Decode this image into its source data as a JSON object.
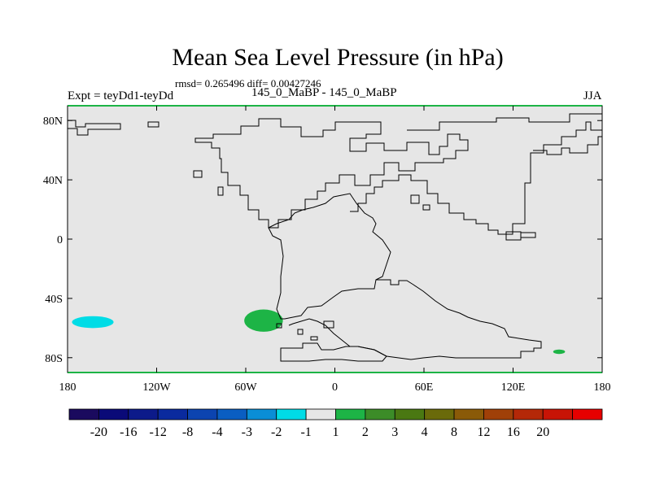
{
  "title": "Mean Sea Level Pressure (in hPa)",
  "stats": "rmsd= 0.265496  diff= 0.00427246",
  "left_label": "Expt = teyDd1-teyDd",
  "center_label": "145_0_MaBP - 145_0_MaBP",
  "right_label": "JJA",
  "map": {
    "background_color": "#e6e6e6",
    "lat_ticks": [
      {
        "lat": 80,
        "label": "80N"
      },
      {
        "lat": 40,
        "label": "40N"
      },
      {
        "lat": 0,
        "label": "0"
      },
      {
        "lat": -40,
        "label": "40S"
      },
      {
        "lat": -80,
        "label": "80S"
      }
    ],
    "lon_ticks": [
      {
        "lon": -180,
        "label": "180"
      },
      {
        "lon": -120,
        "label": "120W"
      },
      {
        "lon": -60,
        "label": "60W"
      },
      {
        "lon": 0,
        "label": "0"
      },
      {
        "lon": 60,
        "label": "60E"
      },
      {
        "lon": 120,
        "label": "120E"
      },
      {
        "lon": 180,
        "label": "180"
      }
    ],
    "anomalies": [
      {
        "name": "south-pacific-negative",
        "lon": -163,
        "lat": -56,
        "dlon": 14,
        "dlat": 4,
        "color": "#00dce6"
      },
      {
        "name": "south-atlantic-positive",
        "lon": -48,
        "lat": -55,
        "dlon": 13,
        "dlat": 7.5,
        "color": "#1db446"
      },
      {
        "name": "southwest-pacific-positive",
        "lon": 151,
        "lat": -76,
        "dlon": 4,
        "dlat": 1.5,
        "color": "#1db446"
      }
    ]
  },
  "colorbar": {
    "colors": [
      "#1a0a5e",
      "#0a0a78",
      "#0c1a8a",
      "#0a2a9e",
      "#0c44b0",
      "#0a5ec2",
      "#0a8ed6",
      "#00dce6",
      "#e6e6e6",
      "#1db446",
      "#3c8c28",
      "#4a7812",
      "#6a6a0a",
      "#8a5a08",
      "#a04008",
      "#b42808",
      "#c81406",
      "#e60000"
    ],
    "labels": [
      "-20",
      "-16",
      "-12",
      "-8",
      "-4",
      "-3",
      "-2",
      "-1",
      "1",
      "2",
      "3",
      "4",
      "8",
      "12",
      "16",
      "20"
    ]
  }
}
